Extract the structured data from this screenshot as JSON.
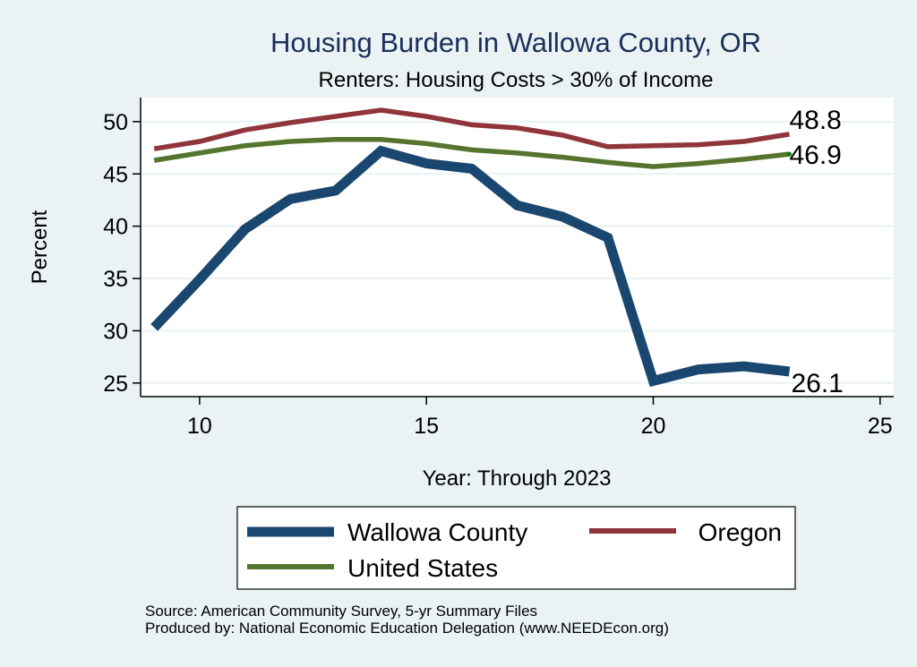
{
  "chart_data": {
    "type": "line",
    "title": "Housing Burden in Wallowa County, OR",
    "subtitle": "Renters: Housing Costs > 30% of Income",
    "xlabel": "Year: Through 2023",
    "ylabel": "Percent",
    "xlim": [
      8.7,
      25.3
    ],
    "ylim": [
      23.7,
      52.3
    ],
    "xticks": [
      10,
      15,
      20,
      25
    ],
    "yticks": [
      25,
      30,
      35,
      40,
      45,
      50
    ],
    "grid": true,
    "x": [
      9,
      10,
      11,
      12,
      13,
      14,
      15,
      16,
      17,
      18,
      19,
      20,
      21,
      22,
      23
    ],
    "series": [
      {
        "name": "Wallowa County",
        "color": "#1a476f",
        "values": [
          30.3,
          34.9,
          39.7,
          42.6,
          43.4,
          47.2,
          46.0,
          45.5,
          42.0,
          40.9,
          38.9,
          25.2,
          26.3,
          26.6,
          26.1
        ],
        "end_label": "26.1"
      },
      {
        "name": "Oregon",
        "color": "#90353b",
        "values": [
          47.4,
          48.1,
          49.2,
          49.9,
          50.5,
          51.1,
          50.5,
          49.7,
          49.4,
          48.7,
          47.6,
          47.7,
          47.8,
          48.1,
          48.8
        ],
        "end_label": "48.8"
      },
      {
        "name": "United States",
        "color": "#55752f",
        "values": [
          46.3,
          47.0,
          47.7,
          48.1,
          48.3,
          48.3,
          47.9,
          47.3,
          47.0,
          46.6,
          46.1,
          45.7,
          46.0,
          46.4,
          46.9
        ],
        "end_label": "46.9"
      }
    ],
    "legend": {
      "position": "bottom",
      "entries": [
        "Wallowa County",
        "Oregon",
        "United States"
      ]
    },
    "notes": [
      "Source: American Community Survey, 5-yr Summary Files",
      "Produced by: National Economic Education Delegation (www.NEEDEcon.org)"
    ]
  },
  "colors": {
    "background": "#eaf2f3",
    "plot_background": "#ffffff",
    "gridline": "#eaf2f3",
    "title": "#1a2f5a"
  }
}
